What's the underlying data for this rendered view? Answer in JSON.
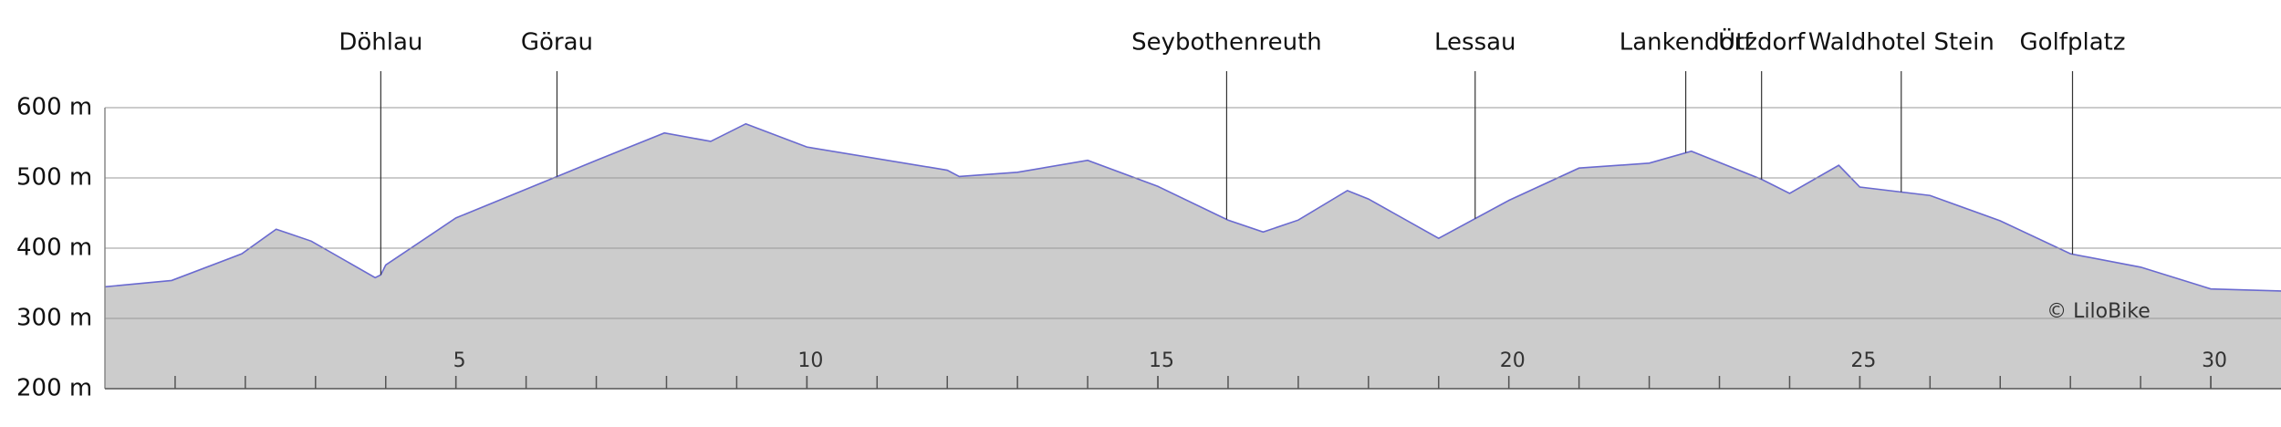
{
  "chart_data": {
    "type": "area",
    "x": [
      0,
      0.95,
      1.95,
      2.44,
      2.94,
      3.85,
      3.93,
      4.0,
      5,
      6.44,
      7.0,
      7.97,
      8.63,
      9.13,
      10,
      12.0,
      12.17,
      13.0,
      14.0,
      15,
      16,
      16.5,
      17.0,
      17.7,
      18,
      19,
      20,
      21,
      22,
      22.6,
      23.6,
      24.0,
      24.7,
      25,
      26,
      27,
      28,
      29,
      30,
      31
    ],
    "series": [
      {
        "color": "#6a6ad0",
        "fill": "#cccccc",
        "values": [
          345,
          354,
          392,
          427,
          410,
          358,
          362,
          376,
          443,
          502,
          525,
          564,
          552,
          577,
          544,
          511,
          502,
          508,
          525,
          488,
          440,
          423,
          440,
          482,
          470,
          414,
          468,
          514,
          521,
          538,
          498,
          478,
          518,
          487,
          475,
          439,
          392,
          373,
          342,
          339
        ]
      }
    ],
    "xlim": [
      0,
      31
    ],
    "xticks": [
      5,
      10,
      15,
      20,
      25,
      30
    ],
    "xminor_ticks": [
      1,
      2,
      3,
      4,
      5,
      6,
      7,
      8,
      9,
      10,
      11,
      12,
      13,
      14,
      15,
      16,
      17,
      18,
      19,
      20,
      21,
      22,
      23,
      24,
      25,
      26,
      27,
      28,
      29,
      30
    ],
    "ylim": [
      200,
      600
    ],
    "yticks": [
      {
        "value": 200,
        "label": "200 m"
      },
      {
        "value": 300,
        "label": "300 m"
      },
      {
        "value": 400,
        "label": "400 m"
      },
      {
        "value": 500,
        "label": "500 m"
      },
      {
        "value": 600,
        "label": "600 m"
      }
    ],
    "grid": true,
    "places": [
      {
        "label": "Döhlau",
        "x": 3.93
      },
      {
        "label": "Görau",
        "x": 6.44
      },
      {
        "label": "Seybothenreuth",
        "x": 15.98
      },
      {
        "label": "Lessau",
        "x": 19.52
      },
      {
        "label": "Lankendorf",
        "x": 22.52
      },
      {
        "label": "Ützdorf",
        "x": 23.6
      },
      {
        "label": "Waldhotel Stein",
        "x": 25.59
      },
      {
        "label": "Golfplatz",
        "x": 28.03
      }
    ],
    "credit": "© LiloBike"
  }
}
